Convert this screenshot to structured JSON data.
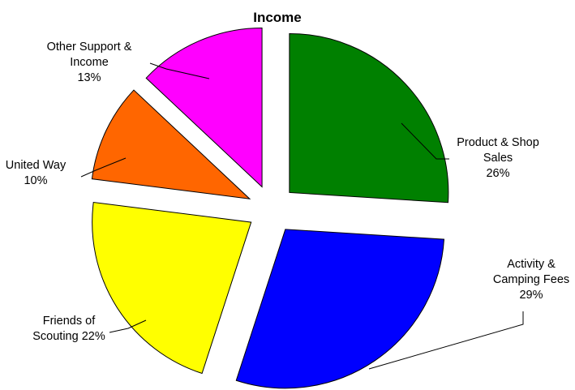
{
  "chart_data": {
    "type": "pie",
    "title": "Income",
    "slices": [
      {
        "name": "Product & Shop Sales",
        "value": 26,
        "label_lines": [
          "Product & Shop",
          "Sales",
          "26%"
        ],
        "color": "#008000"
      },
      {
        "name": "Activity & Camping Fees",
        "value": 29,
        "label_lines": [
          "Activity &",
          "Camping Fees",
          "29%"
        ],
        "color": "#0000FF"
      },
      {
        "name": "Friends of Scouting",
        "value": 22,
        "label_lines": [
          "Friends of",
          "Scouting 22%"
        ],
        "color": "#FFFF00"
      },
      {
        "name": "United Way",
        "value": 10,
        "label_lines": [
          "United Way",
          "10%"
        ],
        "color": "#FF6600"
      },
      {
        "name": "Other Support & Income",
        "value": 13,
        "label_lines": [
          "Other Support &",
          "Income",
          "13%"
        ],
        "color": "#FF00FF"
      }
    ],
    "exploded": true,
    "legend": "none",
    "label_style": "outside with leader lines"
  }
}
